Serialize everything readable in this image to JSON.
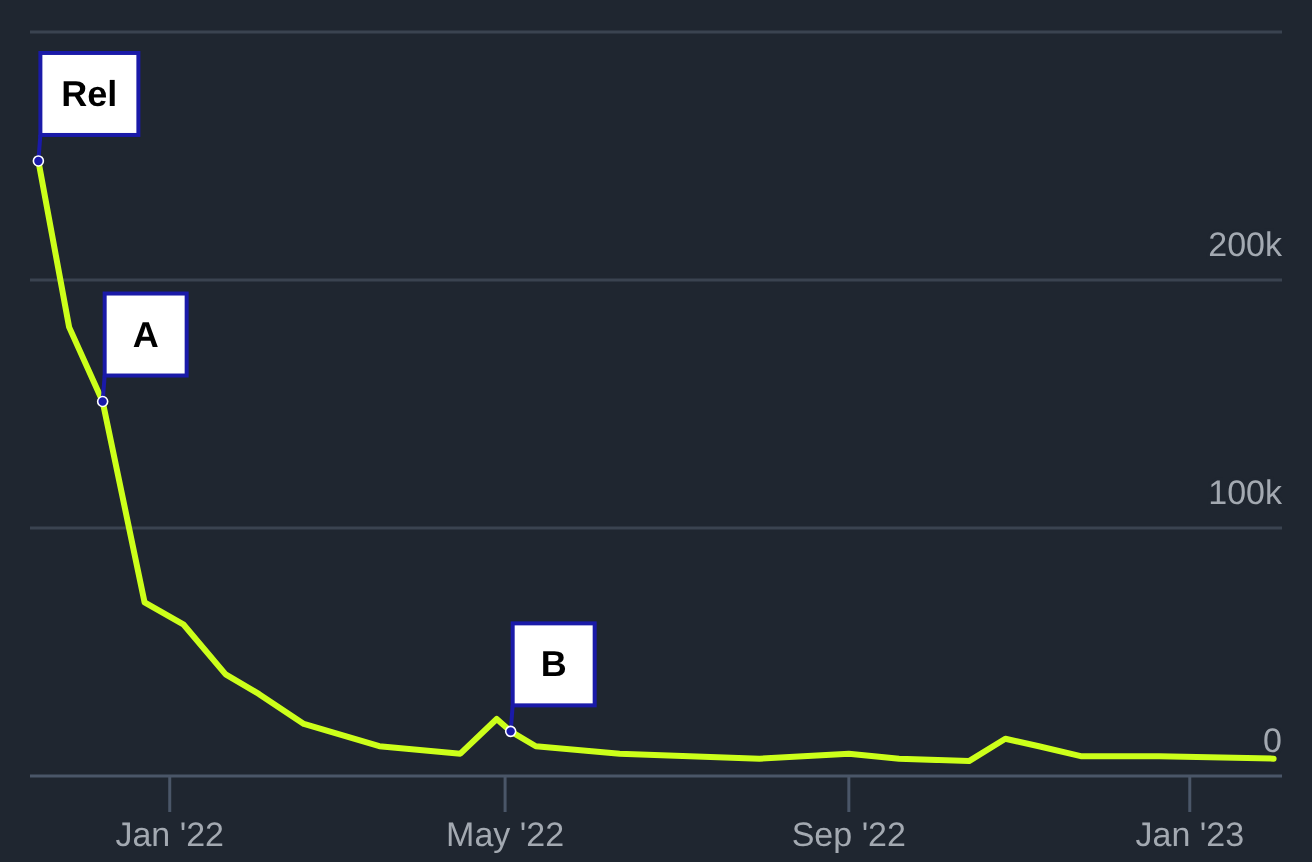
{
  "chart_data": {
    "type": "line",
    "x": [
      "2021-11-15",
      "2021-11-26",
      "2021-12-08",
      "2021-12-23",
      "2022-01-06",
      "2022-01-21",
      "2022-02-02",
      "2022-02-18",
      "2022-03-17",
      "2022-04-15",
      "2022-04-28",
      "2022-05-03",
      "2022-05-12",
      "2022-06-11",
      "2022-07-31",
      "2022-09-01",
      "2022-09-19",
      "2022-10-14",
      "2022-10-27",
      "2022-11-08",
      "2022-11-23",
      "2022-12-21",
      "2023-01-31"
    ],
    "series": [
      {
        "color": "#ccff1a",
        "values": [
          248000,
          181000,
          151000,
          70000,
          61000,
          41000,
          33000,
          21000,
          12000,
          9000,
          23000,
          18000,
          12000,
          9000,
          7000,
          9000,
          7000,
          6000,
          15000,
          12000,
          8000,
          8000,
          7000
        ]
      }
    ],
    "xlim": [
      "2021-11-12",
      "2023-02-03"
    ],
    "xticks": [
      {
        "value": "2022-01-01",
        "label": "Jan '22"
      },
      {
        "value": "2022-05-01",
        "label": "May '22"
      },
      {
        "value": "2022-09-01",
        "label": "Sep '22"
      },
      {
        "value": "2023-01-01",
        "label": "Jan '23"
      }
    ],
    "ylim": [
      0,
      300000
    ],
    "yticks": [
      0,
      {
        "value": 100000,
        "label": "100k"
      },
      {
        "value": 200000,
        "label": "200k"
      },
      {
        "value": 300000,
        "label": null
      }
    ],
    "grid": "y",
    "annotations": [
      {
        "text": "Rel",
        "x": "2021-11-15",
        "y": 248000
      },
      {
        "text": "A",
        "x": "2021-12-08",
        "y": 151000
      },
      {
        "text": "B",
        "x": "2022-05-03",
        "y": 18000
      }
    ]
  }
}
